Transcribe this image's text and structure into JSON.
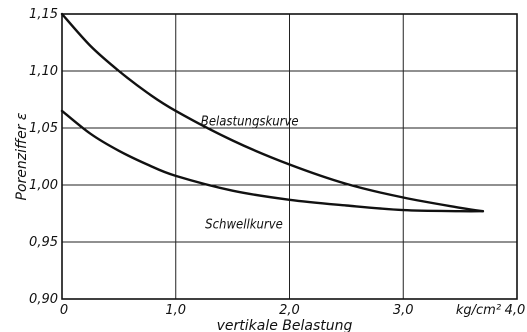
{
  "chart_data": {
    "type": "line",
    "xlabel": "vertikale Belastung",
    "x_unit": "kg/cm²",
    "ylabel": "Porenziffer ε",
    "xlim": [
      0,
      4.0
    ],
    "ylim": [
      0.9,
      1.15
    ],
    "xticks": [
      {
        "value": 0,
        "label": "0"
      },
      {
        "value": 1.0,
        "label": "1,0"
      },
      {
        "value": 2.0,
        "label": "2,0"
      },
      {
        "value": 3.0,
        "label": "3,0"
      },
      {
        "value": 4.0,
        "label": "4,0"
      }
    ],
    "yticks": [
      {
        "value": 0.9,
        "label": "0,90"
      },
      {
        "value": 0.95,
        "label": "0,95"
      },
      {
        "value": 1.0,
        "label": "1,00"
      },
      {
        "value": 1.05,
        "label": "1,05"
      },
      {
        "value": 1.1,
        "label": "1,10"
      },
      {
        "value": 1.15,
        "label": "1,15"
      }
    ],
    "grid": true,
    "series": [
      {
        "name": "Belastungskurve",
        "x": [
          0,
          0.25,
          0.5,
          0.75,
          1.0,
          1.5,
          2.0,
          2.5,
          3.0,
          3.5,
          3.7
        ],
        "y": [
          1.15,
          1.122,
          1.1,
          1.081,
          1.065,
          1.039,
          1.018,
          1.001,
          0.989,
          0.98,
          0.977
        ]
      },
      {
        "name": "Schwellkurve",
        "x": [
          0,
          0.25,
          0.5,
          0.75,
          1.0,
          1.5,
          2.0,
          2.5,
          3.0,
          3.5,
          3.7
        ],
        "y": [
          1.065,
          1.045,
          1.03,
          1.018,
          1.008,
          0.995,
          0.987,
          0.982,
          0.978,
          0.977,
          0.977
        ]
      }
    ]
  }
}
